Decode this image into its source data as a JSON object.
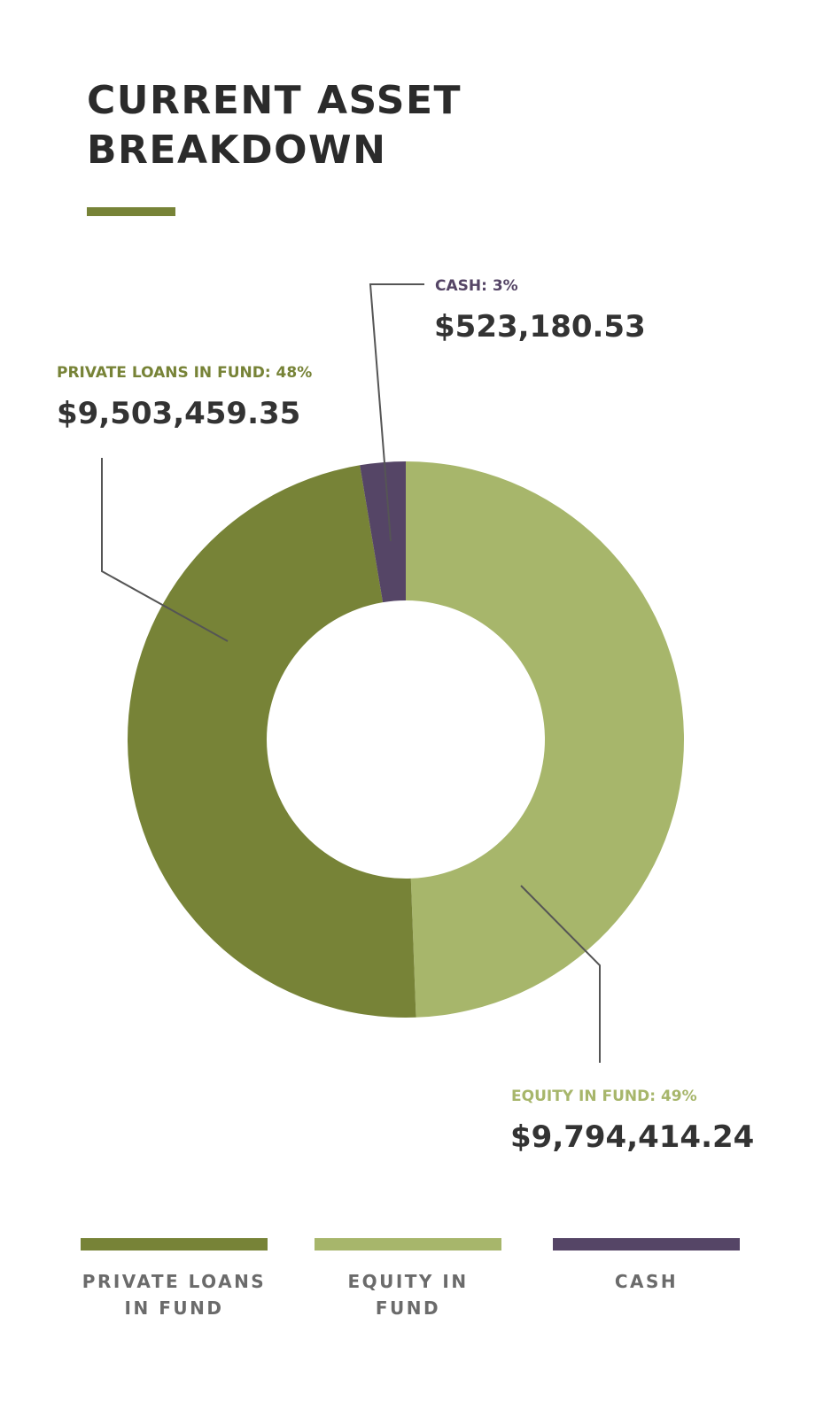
{
  "colors": {
    "private_loans": "#778337",
    "equity": "#a7b66b",
    "cash": "#554566",
    "title_rule": "#778337",
    "leader_line": "#555555"
  },
  "chart_data": {
    "type": "pie",
    "style": "donut",
    "title": "CURRENT ASSET BREAKDOWN",
    "start_angle_deg": 0,
    "direction": "clockwise",
    "slices": [
      {
        "key": "equity",
        "label": "EQUITY IN FUND",
        "callout_label": "EQUITY IN FUND: 49%",
        "percent": 49,
        "value": 9794414.24,
        "value_text": "$9,794,414.24"
      },
      {
        "key": "private_loans",
        "label": "PRIVATE LOANS IN FUND",
        "callout_label": "PRIVATE LOANS IN FUND: 48%",
        "percent": 48,
        "value": 9503459.35,
        "value_text": "$9,503,459.35"
      },
      {
        "key": "cash",
        "label": "CASH",
        "callout_label": "CASH: 3%",
        "percent": 3,
        "value": 523180.53,
        "value_text": "$523,180.53"
      }
    ],
    "legend_position": "bottom"
  },
  "title": {
    "line1": "CURRENT ASSET",
    "line2": "BREAKDOWN"
  },
  "legend": {
    "private_loans_line1": "PRIVATE LOANS",
    "private_loans_line2": "IN FUND",
    "equity": "EQUITY IN FUND",
    "cash": "CASH"
  }
}
